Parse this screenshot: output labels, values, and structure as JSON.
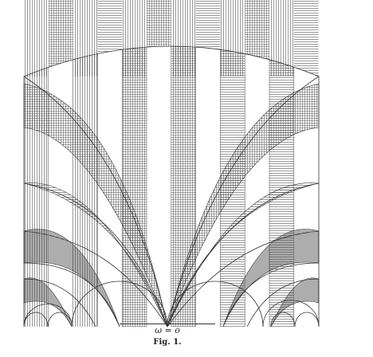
{
  "caption": {
    "formula": "ω = o",
    "figure_label": "Fig. 1."
  },
  "colors": {
    "ink": "#333333",
    "paper": "#ffffff"
  }
}
